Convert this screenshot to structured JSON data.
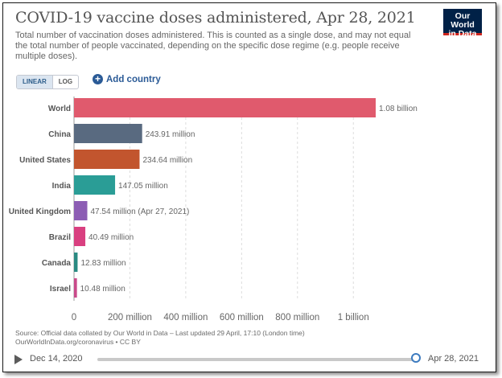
{
  "header": {
    "title": "COVID-19 vaccine doses administered, Apr 28, 2021",
    "subtitle": "Total number of vaccination doses administered. This is counted as a single dose, and may not equal the total number of people vaccinated, depending on the specific dose regime (e.g. people receive multiple doses).",
    "logo_line1": "Our World",
    "logo_line2": "in Data"
  },
  "controls": {
    "linear_label": "LINEAR",
    "log_label": "LOG",
    "active_scale": "linear",
    "add_country_label": "Add country"
  },
  "chart_data": {
    "type": "bar",
    "orientation": "horizontal",
    "title": "COVID-19 vaccine doses administered, Apr 28, 2021",
    "categories": [
      "World",
      "China",
      "United States",
      "India",
      "United Kingdom",
      "Brazil",
      "Canada",
      "Israel"
    ],
    "values": [
      1080000000,
      243910000,
      234640000,
      147050000,
      47540000,
      40490000,
      12830000,
      10480000
    ],
    "value_labels": [
      "1.08 billion",
      "243.91 million",
      "234.64 million",
      "147.05 million",
      "47.54 million (Apr 27, 2021)",
      "40.49 million",
      "12.83 million",
      "10.48 million"
    ],
    "colors": [
      "#e05a6d",
      "#596a80",
      "#c2552e",
      "#2a9d96",
      "#8c5db4",
      "#d94080",
      "#2a8a82",
      "#c94a8a"
    ],
    "x_ticks": [
      0,
      200000000,
      400000000,
      600000000,
      800000000,
      1000000000
    ],
    "x_tick_labels": [
      "0",
      "200 million",
      "400 million",
      "600 million",
      "800 million",
      "1 billion"
    ],
    "xlim": [
      0,
      1080000000
    ],
    "grid": "vertical-dashed",
    "xlabel": "",
    "ylabel": ""
  },
  "footer": {
    "source_line1": "Source: Official data collated by Our World in Data – Last updated 29 April, 17:10 (London time)",
    "source_line2": "OurWorldInData.org/coronavirus • CC BY"
  },
  "timeline": {
    "start_label": "Dec 14, 2020",
    "end_label": "Apr 28, 2021",
    "position": 1.0
  }
}
